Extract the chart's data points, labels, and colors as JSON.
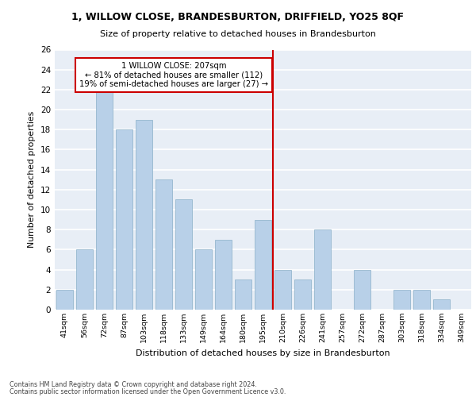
{
  "title1": "1, WILLOW CLOSE, BRANDESBURTON, DRIFFIELD, YO25 8QF",
  "title2": "Size of property relative to detached houses in Brandesburton",
  "xlabel": "Distribution of detached houses by size in Brandesburton",
  "ylabel": "Number of detached properties",
  "categories": [
    "41sqm",
    "56sqm",
    "72sqm",
    "87sqm",
    "103sqm",
    "118sqm",
    "133sqm",
    "149sqm",
    "164sqm",
    "180sqm",
    "195sqm",
    "210sqm",
    "226sqm",
    "241sqm",
    "257sqm",
    "272sqm",
    "287sqm",
    "303sqm",
    "318sqm",
    "334sqm",
    "349sqm"
  ],
  "values": [
    2,
    6,
    22,
    18,
    19,
    13,
    11,
    6,
    7,
    3,
    9,
    4,
    3,
    8,
    0,
    4,
    0,
    2,
    2,
    1,
    0
  ],
  "bar_color": "#b8d0e8",
  "bar_edge_color": "#8aafc8",
  "bg_color": "#e8eef6",
  "grid_color": "#ffffff",
  "vline_x_index": 10.5,
  "vline_color": "#cc0000",
  "annotation_text": "1 WILLOW CLOSE: 207sqm\n← 81% of detached houses are smaller (112)\n19% of semi-detached houses are larger (27) →",
  "annotation_box_color": "#cc0000",
  "ylim": [
    0,
    26
  ],
  "yticks": [
    0,
    2,
    4,
    6,
    8,
    10,
    12,
    14,
    16,
    18,
    20,
    22,
    24,
    26
  ],
  "footer1": "Contains HM Land Registry data © Crown copyright and database right 2024.",
  "footer2": "Contains public sector information licensed under the Open Government Licence v3.0."
}
